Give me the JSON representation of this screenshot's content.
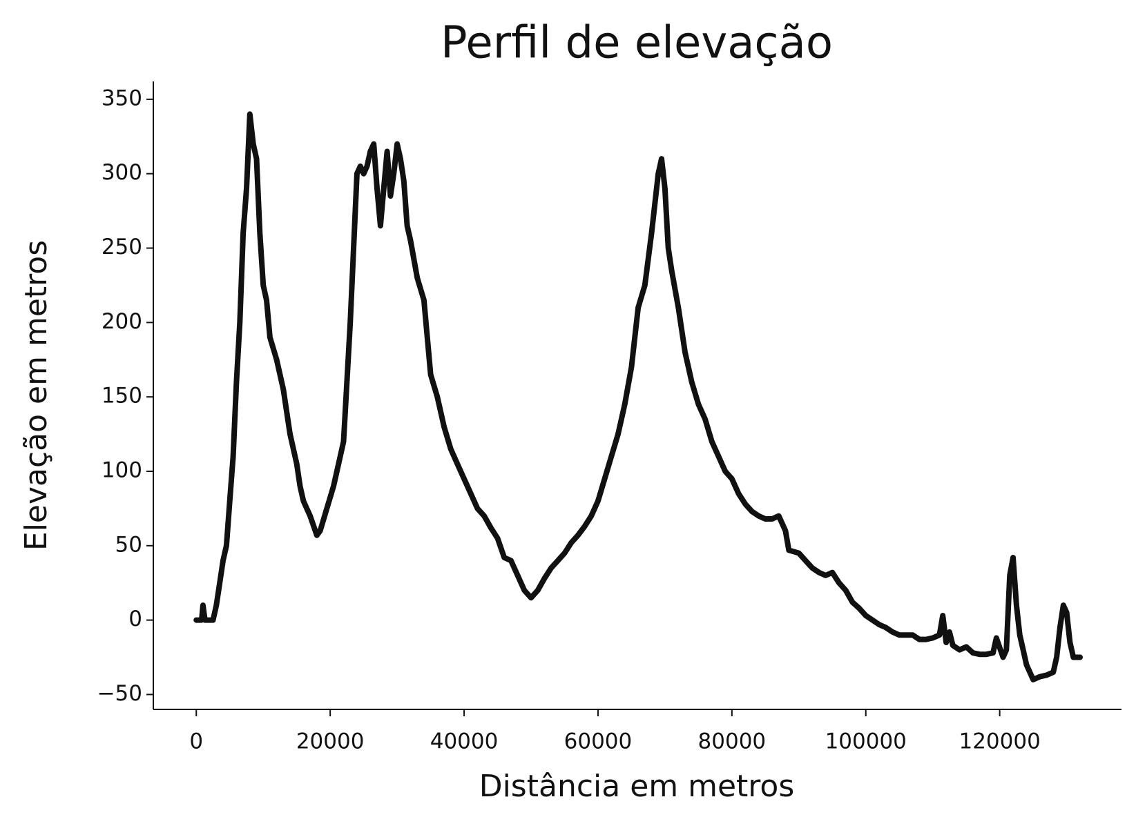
{
  "chart_data": {
    "type": "line",
    "title": "Perfil de elevação",
    "xlabel": "Distância em metros",
    "ylabel": "Elevação em metros",
    "x": [
      0,
      800,
      1000,
      1300,
      2500,
      3000,
      3500,
      4000,
      4500,
      5000,
      5500,
      6000,
      6500,
      7000,
      7500,
      8000,
      8500,
      9000,
      9500,
      10000,
      10500,
      11000,
      12000,
      13000,
      14000,
      15000,
      15500,
      16000,
      17000,
      18000,
      18500,
      19500,
      20500,
      21500,
      22000,
      23000,
      24000,
      24500,
      25000,
      25500,
      26000,
      26500,
      27000,
      27500,
      28000,
      28500,
      29000,
      29500,
      30000,
      30500,
      31000,
      31500,
      32000,
      33000,
      34000,
      35000,
      36000,
      37000,
      38000,
      39000,
      40000,
      41000,
      42000,
      43000,
      44000,
      45000,
      46000,
      47000,
      48000,
      49000,
      50000,
      51000,
      52000,
      53000,
      54000,
      55000,
      56000,
      57000,
      58000,
      59000,
      60000,
      61000,
      62000,
      63000,
      64000,
      65000,
      66000,
      67000,
      68000,
      69000,
      69500,
      70000,
      70500,
      71000,
      72000,
      73000,
      74000,
      75000,
      76000,
      77000,
      78000,
      79000,
      80000,
      81000,
      82000,
      83000,
      84000,
      85000,
      86000,
      87000,
      88000,
      88500,
      90000,
      91000,
      92000,
      93000,
      94000,
      95000,
      96000,
      97000,
      98000,
      99000,
      100000,
      101000,
      102000,
      103000,
      104000,
      105000,
      106000,
      107000,
      108000,
      109000,
      110000,
      111000,
      111500,
      112000,
      112500,
      113000,
      114000,
      115000,
      116000,
      117000,
      118000,
      119000,
      119500,
      120500,
      121000,
      121500,
      122000,
      122500,
      123000,
      123500,
      124000,
      125000,
      126000,
      127000,
      128000,
      128500,
      129000,
      129500,
      130000,
      130500,
      131000,
      132000
    ],
    "series": [
      {
        "color": "#111111",
        "values": [
          0,
          0,
          10,
          0,
          0,
          10,
          25,
          40,
          50,
          80,
          110,
          160,
          200,
          260,
          290,
          340,
          320,
          310,
          260,
          225,
          215,
          190,
          175,
          155,
          125,
          105,
          90,
          80,
          70,
          57,
          60,
          75,
          90,
          110,
          120,
          200,
          300,
          305,
          300,
          305,
          315,
          320,
          290,
          265,
          290,
          315,
          285,
          300,
          320,
          310,
          295,
          265,
          255,
          230,
          215,
          165,
          150,
          130,
          115,
          105,
          95,
          85,
          75,
          70,
          62,
          55,
          42,
          40,
          30,
          20,
          15,
          20,
          28,
          35,
          40,
          45,
          52,
          57,
          63,
          70,
          80,
          95,
          110,
          125,
          145,
          170,
          210,
          225,
          260,
          300,
          310,
          290,
          250,
          235,
          210,
          180,
          160,
          145,
          135,
          120,
          110,
          100,
          95,
          85,
          78,
          73,
          70,
          68,
          68,
          70,
          60,
          47,
          45,
          40,
          35,
          32,
          30,
          32,
          25,
          20,
          12,
          8,
          3,
          0,
          -3,
          -5,
          -8,
          -10,
          -10,
          -10,
          -13,
          -13,
          -12,
          -10,
          3,
          -15,
          -8,
          -17,
          -20,
          -18,
          -22,
          -23,
          -23,
          -22,
          -12,
          -25,
          -20,
          30,
          42,
          10,
          -10,
          -20,
          -30,
          -40,
          -38,
          -37,
          -35,
          -25,
          -5,
          10,
          5,
          -15,
          -25,
          -25
        ]
      }
    ],
    "xlim": [
      -6420,
      138190
    ],
    "ylim": [
      -60,
      362
    ],
    "xticks": [
      0,
      20000,
      40000,
      60000,
      80000,
      100000,
      120000
    ],
    "yticks": [
      {
        "value": -50,
        "label": "−50"
      },
      0,
      50,
      100,
      150,
      200,
      250,
      300,
      350
    ]
  }
}
